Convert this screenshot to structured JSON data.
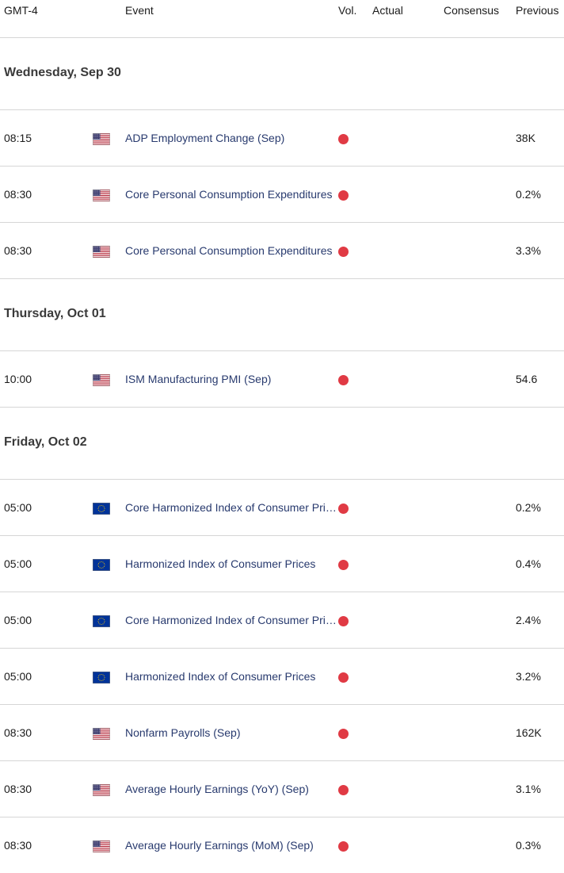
{
  "header": {
    "timezone": "GMT-4",
    "event": "Event",
    "vol": "Vol.",
    "actual": "Actual",
    "consensus": "Consensus",
    "previous": "Previous"
  },
  "colors": {
    "volatility_high": "#e03a44",
    "event_link": "#283a6e"
  },
  "days": [
    {
      "label": "Wednesday, Sep 30",
      "events": [
        {
          "time": "08:15",
          "flag": "us-flag",
          "name": "ADP Employment Change (Sep)",
          "volatility": "high",
          "actual": "",
          "consensus": "",
          "previous": "38K"
        },
        {
          "time": "08:30",
          "flag": "us-flag",
          "name": "Core Personal Consumption Expenditures",
          "volatility": "high",
          "actual": "",
          "consensus": "",
          "previous": "0.2%"
        },
        {
          "time": "08:30",
          "flag": "us-flag",
          "name": "Core Personal Consumption Expenditures",
          "volatility": "high",
          "actual": "",
          "consensus": "",
          "previous": "3.3%"
        }
      ]
    },
    {
      "label": "Thursday, Oct 01",
      "events": [
        {
          "time": "10:00",
          "flag": "us-flag",
          "name": "ISM Manufacturing PMI (Sep)",
          "volatility": "high",
          "actual": "",
          "consensus": "",
          "previous": "54.6"
        }
      ]
    },
    {
      "label": "Friday, Oct 02",
      "events": [
        {
          "time": "05:00",
          "flag": "eu-flag",
          "name": "Core Harmonized Index of Consumer Prices",
          "volatility": "high",
          "actual": "",
          "consensus": "",
          "previous": "0.2%"
        },
        {
          "time": "05:00",
          "flag": "eu-flag",
          "name": "Harmonized Index of Consumer Prices",
          "volatility": "high",
          "actual": "",
          "consensus": "",
          "previous": "0.4%"
        },
        {
          "time": "05:00",
          "flag": "eu-flag",
          "name": "Core Harmonized Index of Consumer Prices",
          "volatility": "high",
          "actual": "",
          "consensus": "",
          "previous": "2.4%"
        },
        {
          "time": "05:00",
          "flag": "eu-flag",
          "name": "Harmonized Index of Consumer Prices",
          "volatility": "high",
          "actual": "",
          "consensus": "",
          "previous": "3.2%"
        },
        {
          "time": "08:30",
          "flag": "us-flag",
          "name": "Nonfarm Payrolls (Sep)",
          "volatility": "high",
          "actual": "",
          "consensus": "",
          "previous": "162K"
        },
        {
          "time": "08:30",
          "flag": "us-flag",
          "name": "Average Hourly Earnings (YoY) (Sep)",
          "volatility": "high",
          "actual": "",
          "consensus": "",
          "previous": "3.1%"
        },
        {
          "time": "08:30",
          "flag": "us-flag",
          "name": "Average Hourly Earnings (MoM) (Sep)",
          "volatility": "high",
          "actual": "",
          "consensus": "",
          "previous": "0.3%"
        }
      ]
    }
  ]
}
